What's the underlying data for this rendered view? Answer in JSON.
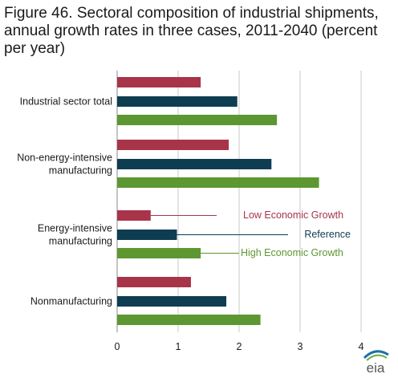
{
  "title": "Figure 46. Sectoral composition of industrial shipments, annual growth rates in three cases, 2011-2040 (percent per year)",
  "colors": {
    "low": "#a8344a",
    "reference": "#0e3d52",
    "high": "#5d9732",
    "grid": "#c8c8c8",
    "logo_blue": "#1f6fa8",
    "logo_green": "#6bab3c"
  },
  "chart_data": {
    "type": "bar",
    "orientation": "horizontal",
    "categories": [
      "Industrial sector total",
      "Non-energy-intensive manufacturing",
      "Energy-intensive manufacturing",
      "Nonmanufacturing"
    ],
    "category_lines": [
      [
        "Industrial sector total"
      ],
      [
        "Non-energy-intensive",
        "manufacturing"
      ],
      [
        "Energy-intensive",
        "manufacturing"
      ],
      [
        "Nonmanufacturing"
      ]
    ],
    "series": [
      {
        "name": "Low Economic Growth",
        "color": "#a8344a",
        "values": [
          1.37,
          1.83,
          0.55,
          1.21
        ]
      },
      {
        "name": "Reference",
        "color": "#0e3d52",
        "values": [
          1.97,
          2.53,
          0.98,
          1.79
        ]
      },
      {
        "name": "High Economic Growth",
        "color": "#5d9732",
        "values": [
          2.62,
          3.31,
          1.37,
          2.35
        ]
      }
    ],
    "xlim": [
      0,
      4
    ],
    "xticks": [
      "0",
      "1",
      "2",
      "3",
      "4"
    ],
    "grid": true,
    "legend": "inline annotations next to the Energy-intensive manufacturing bars"
  },
  "logo_text": "eia"
}
